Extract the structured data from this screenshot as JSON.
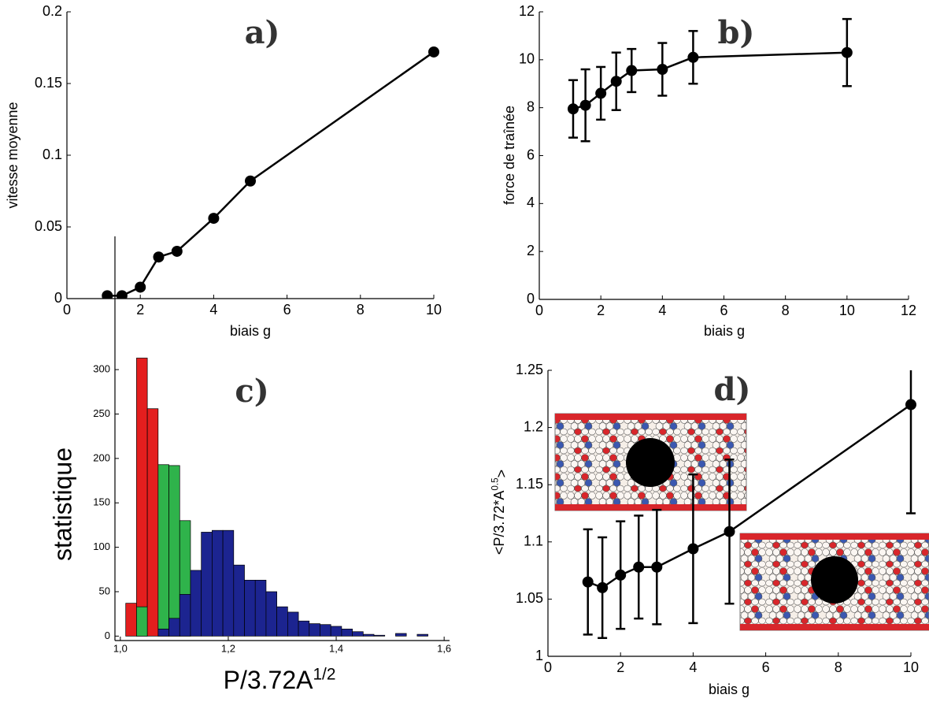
{
  "chart_data": [
    {
      "type": "line",
      "annotation": "a)",
      "x_label": "biais g",
      "y_label": "vitesse moyenne",
      "x": [
        1.1,
        1.5,
        2,
        2.5,
        3,
        4,
        5,
        10
      ],
      "values": [
        0.002,
        0.002,
        0.008,
        0.029,
        0.033,
        0.056,
        0.082,
        0.172
      ],
      "color": "#000000",
      "xlim": [
        0,
        10
      ],
      "xticks": [
        0,
        2,
        4,
        6,
        8,
        10
      ],
      "ylim": [
        0,
        0.2
      ],
      "yticks": [
        0,
        0.05,
        0.1,
        0.15,
        0.2
      ]
    },
    {
      "type": "line",
      "annotation": "b)",
      "x_label": "biais g",
      "y_label": "force de traînée",
      "x": [
        1.1,
        1.5,
        2,
        2.5,
        3,
        4,
        5,
        10
      ],
      "values": [
        7.95,
        8.1,
        8.6,
        9.1,
        9.55,
        9.6,
        10.1,
        10.3
      ],
      "errors": [
        1.2,
        1.5,
        1.1,
        1.2,
        0.9,
        1.1,
        1.1,
        1.4
      ],
      "color": "#000000",
      "xlim": [
        0,
        12
      ],
      "xticks": [
        0,
        2,
        4,
        6,
        8,
        10,
        12
      ],
      "ylim": [
        0,
        12
      ],
      "yticks": [
        0,
        2,
        4,
        6,
        8,
        10,
        12
      ]
    },
    {
      "type": "histogram",
      "annotation": "c)",
      "x_label": {
        "text": "P/3.72A",
        "sup": "1/2"
      },
      "y_label": "statistique",
      "bins": [
        1.01,
        1.03,
        1.05,
        1.07,
        1.09,
        1.11,
        1.13,
        1.15,
        1.17,
        1.19,
        1.21,
        1.23,
        1.25,
        1.27,
        1.29,
        1.31,
        1.33,
        1.35,
        1.37,
        1.39,
        1.41,
        1.43,
        1.45,
        1.47,
        1.49,
        1.51,
        1.53,
        1.55,
        1.57,
        1.59
      ],
      "series": [
        {
          "color": "#e41e1e",
          "values": [
            37,
            313,
            256,
            0,
            0,
            0,
            0,
            0,
            0,
            0,
            0,
            0,
            0,
            0,
            0,
            0,
            0,
            0,
            0,
            0,
            0,
            0,
            0,
            0,
            0,
            0,
            0,
            0,
            0
          ]
        },
        {
          "color": "#2fb34b",
          "values": [
            0,
            33,
            0,
            193,
            192,
            130,
            0,
            0,
            0,
            0,
            0,
            0,
            0,
            0,
            0,
            0,
            0,
            0,
            0,
            0,
            0,
            0,
            0,
            0,
            0,
            0,
            0,
            0,
            0
          ]
        },
        {
          "color": "#1c2490",
          "values": [
            0,
            0,
            0,
            8,
            20,
            47,
            74,
            117,
            119,
            119,
            80,
            63,
            63,
            50,
            33,
            27,
            17,
            14,
            13,
            11,
            8,
            5,
            2,
            1,
            0,
            3,
            0,
            2,
            0
          ]
        }
      ],
      "xlim": [
        0.99,
        1.61
      ],
      "xticks": [
        {
          "value": 1.0,
          "label": "1,0"
        },
        {
          "value": 1.2,
          "label": "1,2"
        },
        {
          "value": 1.4,
          "label": "1,4"
        },
        {
          "value": 1.6,
          "label": "1,6"
        }
      ],
      "ylim": [
        -5,
        450
      ],
      "yticks": [
        0,
        50,
        100,
        150,
        200,
        250,
        300
      ]
    },
    {
      "type": "line",
      "annotation": "d)",
      "x_label": "biais g",
      "y_label": {
        "text": "<P/3.72*A",
        "sup": "0.5",
        "after": ">"
      },
      "x": [
        1.1,
        1.5,
        2,
        2.5,
        3,
        4,
        5,
        10
      ],
      "values": [
        1.065,
        1.06,
        1.071,
        1.078,
        1.078,
        1.094,
        1.109,
        1.22
      ],
      "errors": [
        0.046,
        0.044,
        0.047,
        0.045,
        0.05,
        0.065,
        0.063,
        0.095
      ],
      "color": "#000000",
      "xlim": [
        0,
        10
      ],
      "xticks": [
        0,
        2,
        4,
        6,
        8,
        10
      ],
      "ylim": [
        1,
        1.25
      ],
      "yticks": [
        1,
        1.05,
        1.1,
        1.15,
        1.2,
        1.25
      ]
    }
  ]
}
